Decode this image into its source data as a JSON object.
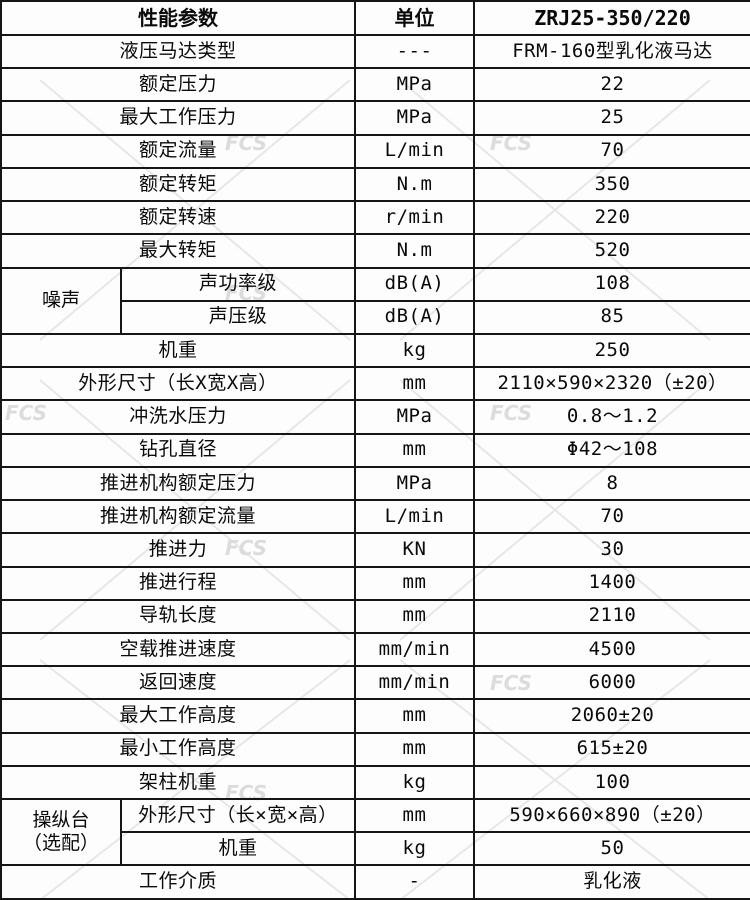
{
  "watermark": {
    "logo": "FCS"
  },
  "table": {
    "header": {
      "param": "性能参数",
      "unit": "单位",
      "model": "ZRJ25-350/220"
    },
    "rows": [
      {
        "param": "液压马达类型",
        "unit": "---",
        "value": "FRM-160型乳化液马达"
      },
      {
        "param": "额定压力",
        "unit": "MPa",
        "value": "22"
      },
      {
        "param": "最大工作压力",
        "unit": "MPa",
        "value": "25"
      },
      {
        "param": "额定流量",
        "unit": "L/min",
        "value": "70"
      },
      {
        "param": "额定转矩",
        "unit": "N.m",
        "value": "350"
      },
      {
        "param": "额定转速",
        "unit": "r/min",
        "value": "220"
      },
      {
        "param": "最大转矩",
        "unit": "N.m",
        "value": "520"
      },
      {
        "group": "噪声",
        "param": "声功率级",
        "unit": "dB(A)",
        "value": "108"
      },
      {
        "in_group": true,
        "param": "声压级",
        "unit": "dB(A)",
        "value": "85"
      },
      {
        "param": "机重",
        "unit": "kg",
        "value": "250"
      },
      {
        "param": "外形尺寸（长X宽X高）",
        "unit": "mm",
        "value": "2110×590×2320（±20）"
      },
      {
        "param": "冲洗水压力",
        "unit": "MPa",
        "value": "0.8～1.2"
      },
      {
        "param": "钻孔直径",
        "unit": "mm",
        "value": "Φ42～108"
      },
      {
        "param": "推进机构额定压力",
        "unit": "MPa",
        "value": "8"
      },
      {
        "param": "推进机构额定流量",
        "unit": "L/min",
        "value": "70"
      },
      {
        "param": "推进力",
        "unit": "KN",
        "value": "30"
      },
      {
        "param": "推进行程",
        "unit": "mm",
        "value": "1400"
      },
      {
        "param": "导轨长度",
        "unit": "mm",
        "value": "2110"
      },
      {
        "param": "空载推进速度",
        "unit": "mm/min",
        "value": "4500"
      },
      {
        "param": "返回速度",
        "unit": "mm/min",
        "value": "6000"
      },
      {
        "param": "最大工作高度",
        "unit": "mm",
        "value": "2060±20"
      },
      {
        "param": "最小工作高度",
        "unit": "mm",
        "value": "615±20"
      },
      {
        "param": "架柱机重",
        "unit": "kg",
        "value": "100"
      },
      {
        "group": "操纵台\n（选配）",
        "param": "外形尺寸（长×宽×高）",
        "unit": "mm",
        "value": "590×660×890（±20）"
      },
      {
        "in_group": true,
        "param": "机重",
        "unit": "kg",
        "value": "50"
      },
      {
        "param": "工作介质",
        "unit": "-",
        "value": "乳化液"
      }
    ]
  }
}
